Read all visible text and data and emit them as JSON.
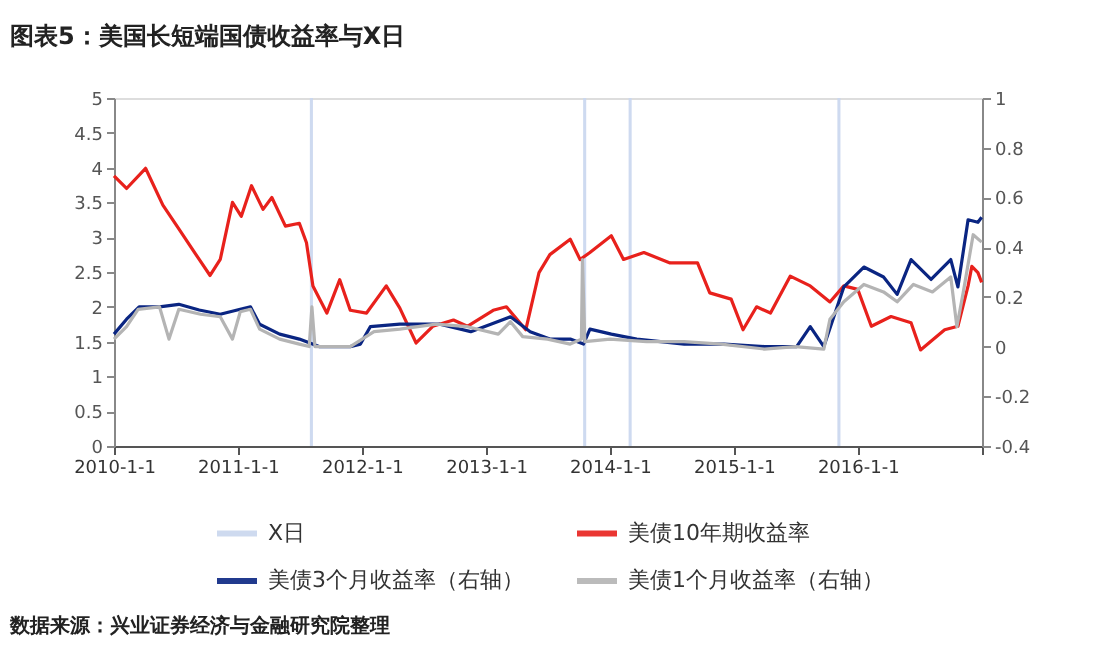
{
  "chart_data": {
    "type": "line",
    "title": "图表5：美国长短端国债收益率与X日",
    "xlim": [
      "2010-01-01",
      "2017-01-01"
    ],
    "xticks": [
      {
        "value": "2010-01-01",
        "label": "2010-1-1"
      },
      {
        "value": "2011-01-01",
        "label": "2011-1-1"
      },
      {
        "value": "2012-01-01",
        "label": "2012-1-1"
      },
      {
        "value": "2013-01-01",
        "label": "2013-1-1"
      },
      {
        "value": "2014-01-01",
        "label": "2014-1-1"
      },
      {
        "value": "2015-01-01",
        "label": "2015-1-1"
      },
      {
        "value": "2016-01-01",
        "label": "2016-1-1"
      },
      {
        "value": "2017-01-01",
        "label": null
      }
    ],
    "ylim": [
      0,
      5
    ],
    "yticks": [
      0,
      0.5,
      1,
      1.5,
      2,
      2.5,
      3,
      3.5,
      4,
      4.5,
      5
    ],
    "y2lim": [
      -0.4,
      1
    ],
    "y2ticks": [
      -0.4,
      -0.2,
      0,
      0.2,
      0.4,
      0.6,
      0.8,
      1
    ],
    "grid": false,
    "legend": "bottom",
    "line_style": "solid",
    "bands": [
      {
        "axis": "x",
        "from": "2011-08-01",
        "to": "2011-08-10",
        "label": "X日",
        "color": "#c9d6ee"
      },
      {
        "axis": "x",
        "from": "2013-10-14",
        "to": "2013-10-23",
        "color": "#c9d6ee"
      },
      {
        "axis": "x",
        "from": "2014-02-25",
        "to": "2014-03-06",
        "color": "#c9d6ee"
      },
      {
        "axis": "x",
        "from": "2015-11-02",
        "to": "2015-11-11",
        "color": "#c9d6ee"
      }
    ],
    "series": [
      {
        "name": "美债10年期收益率",
        "color": "#e8211c",
        "x": [
          "2010-01-01",
          "2010-02-07",
          "2010-04-04",
          "2010-05-25",
          "2010-07-11",
          "2010-09-09",
          "2010-10-11",
          "2010-11-10",
          "2010-12-16",
          "2011-01-11",
          "2011-02-10",
          "2011-03-16",
          "2011-04-11",
          "2011-05-21",
          "2011-07-01",
          "2011-07-22",
          "2011-08-10",
          "2011-09-20",
          "2011-10-28",
          "2011-11-28",
          "2012-01-15",
          "2012-03-13",
          "2012-04-22",
          "2012-06-09",
          "2012-07-28",
          "2012-09-27",
          "2012-11-07",
          "2013-01-22",
          "2013-03-02",
          "2013-04-28",
          "2013-06-06",
          "2013-07-08",
          "2013-09-06",
          "2013-10-05",
          "2013-11-03",
          "2014-01-05",
          "2014-02-10",
          "2014-04-11",
          "2014-06-27",
          "2014-09-16",
          "2014-10-22",
          "2014-12-24",
          "2015-01-28",
          "2015-03-09",
          "2015-04-19",
          "2015-06-16",
          "2015-08-14",
          "2015-10-11",
          "2015-11-21",
          "2016-01-01",
          "2016-02-10",
          "2016-04-08",
          "2016-06-06",
          "2016-07-04",
          "2016-09-13",
          "2016-10-22",
          "2016-11-21",
          "2016-12-02",
          "2016-12-20",
          "2016-12-31"
        ],
        "values": [
          3.88,
          3.7,
          3.99,
          3.46,
          3.12,
          2.68,
          2.45,
          2.68,
          3.5,
          3.3,
          3.74,
          3.4,
          3.57,
          3.16,
          3.2,
          2.92,
          2.3,
          1.91,
          2.39,
          1.95,
          1.91,
          2.3,
          1.98,
          1.48,
          1.72,
          1.81,
          1.72,
          1.95,
          2.0,
          1.67,
          2.49,
          2.75,
          2.97,
          2.68,
          2.78,
          3.02,
          2.68,
          2.78,
          2.63,
          2.63,
          2.2,
          2.11,
          1.67,
          2.0,
          1.91,
          2.44,
          2.3,
          2.07,
          2.3,
          2.25,
          1.72,
          1.86,
          1.77,
          1.38,
          1.67,
          1.72,
          2.3,
          2.58,
          2.49,
          2.35
        ]
      },
      {
        "name": "美债3个月收益率（右轴）",
        "color": "#0a2582",
        "axis": "y2",
        "x": [
          "2010-01-01",
          "2010-02-07",
          "2010-03-16",
          "2010-05-15",
          "2010-07-11",
          "2010-09-09",
          "2010-11-10",
          "2011-01-08",
          "2011-02-07",
          "2011-03-06",
          "2011-05-04",
          "2011-07-01",
          "2011-08-28",
          "2011-11-28",
          "2011-12-28",
          "2012-01-26",
          "2012-04-22",
          "2012-08-18",
          "2012-11-17",
          "2013-01-15",
          "2013-03-14",
          "2013-05-11",
          "2013-07-08",
          "2013-09-06",
          "2013-10-15",
          "2013-11-03",
          "2014-01-05",
          "2014-03-21",
          "2014-08-08",
          "2014-12-03",
          "2015-04-01",
          "2015-07-05",
          "2015-08-14",
          "2015-09-23",
          "2015-11-21",
          "2016-01-19",
          "2016-03-17",
          "2016-04-26",
          "2016-06-06",
          "2016-08-04",
          "2016-10-01",
          "2016-10-22",
          "2016-11-21",
          "2016-12-20",
          "2016-12-31"
        ],
        "values": [
          0.05,
          0.11,
          0.16,
          0.16,
          0.17,
          0.147,
          0.13,
          0.15,
          0.16,
          0.09,
          0.05,
          0.03,
          0.0,
          0.0,
          0.01,
          0.08,
          0.09,
          0.09,
          0.06,
          0.09,
          0.12,
          0.06,
          0.03,
          0.03,
          0.01,
          0.07,
          0.05,
          0.03,
          0.01,
          0.01,
          0.0,
          0.0,
          0.08,
          0.0,
          0.24,
          0.32,
          0.28,
          0.21,
          0.35,
          0.27,
          0.35,
          0.24,
          0.51,
          0.5,
          0.52
        ]
      },
      {
        "name": "美债1个月收益率（右轴）",
        "color": "#b4b4b4",
        "axis": "y2",
        "x": [
          "2010-01-01",
          "2010-02-07",
          "2010-03-13",
          "2010-05-15",
          "2010-06-12",
          "2010-07-11",
          "2010-09-13",
          "2010-11-10",
          "2010-12-16",
          "2011-01-08",
          "2011-02-07",
          "2011-03-06",
          "2011-05-04",
          "2011-07-01",
          "2011-07-30",
          "2011-08-07",
          "2011-08-16",
          "2011-11-28",
          "2012-02-06",
          "2012-04-22",
          "2012-08-07",
          "2012-11-07",
          "2013-02-06",
          "2013-03-14",
          "2013-04-19",
          "2013-07-01",
          "2013-09-06",
          "2013-10-09",
          "2013-10-12",
          "2013-10-19",
          "2014-01-01",
          "2014-04-19",
          "2014-08-07",
          "2014-11-24",
          "2015-04-01",
          "2015-07-01",
          "2015-09-23",
          "2015-10-11",
          "2015-11-21",
          "2016-01-19",
          "2016-03-17",
          "2016-04-26",
          "2016-06-13",
          "2016-08-08",
          "2016-10-01",
          "2016-10-19",
          "2016-11-07",
          "2016-12-06",
          "2016-12-31"
        ],
        "values": [
          0.03,
          0.08,
          0.15,
          0.16,
          0.03,
          0.15,
          0.13,
          0.12,
          0.03,
          0.14,
          0.15,
          0.07,
          0.03,
          0.01,
          0.0,
          0.16,
          0.0,
          0.0,
          0.06,
          0.07,
          0.09,
          0.08,
          0.05,
          0.1,
          0.04,
          0.03,
          0.01,
          0.03,
          0.35,
          0.02,
          0.03,
          0.02,
          0.02,
          0.01,
          -0.01,
          0.0,
          -0.01,
          0.11,
          0.18,
          0.25,
          0.22,
          0.18,
          0.25,
          0.22,
          0.28,
          0.08,
          0.22,
          0.45,
          0.42
        ]
      }
    ],
    "annotations": [
      "数据来源：兴业证券经济与金融研究院整理"
    ]
  }
}
